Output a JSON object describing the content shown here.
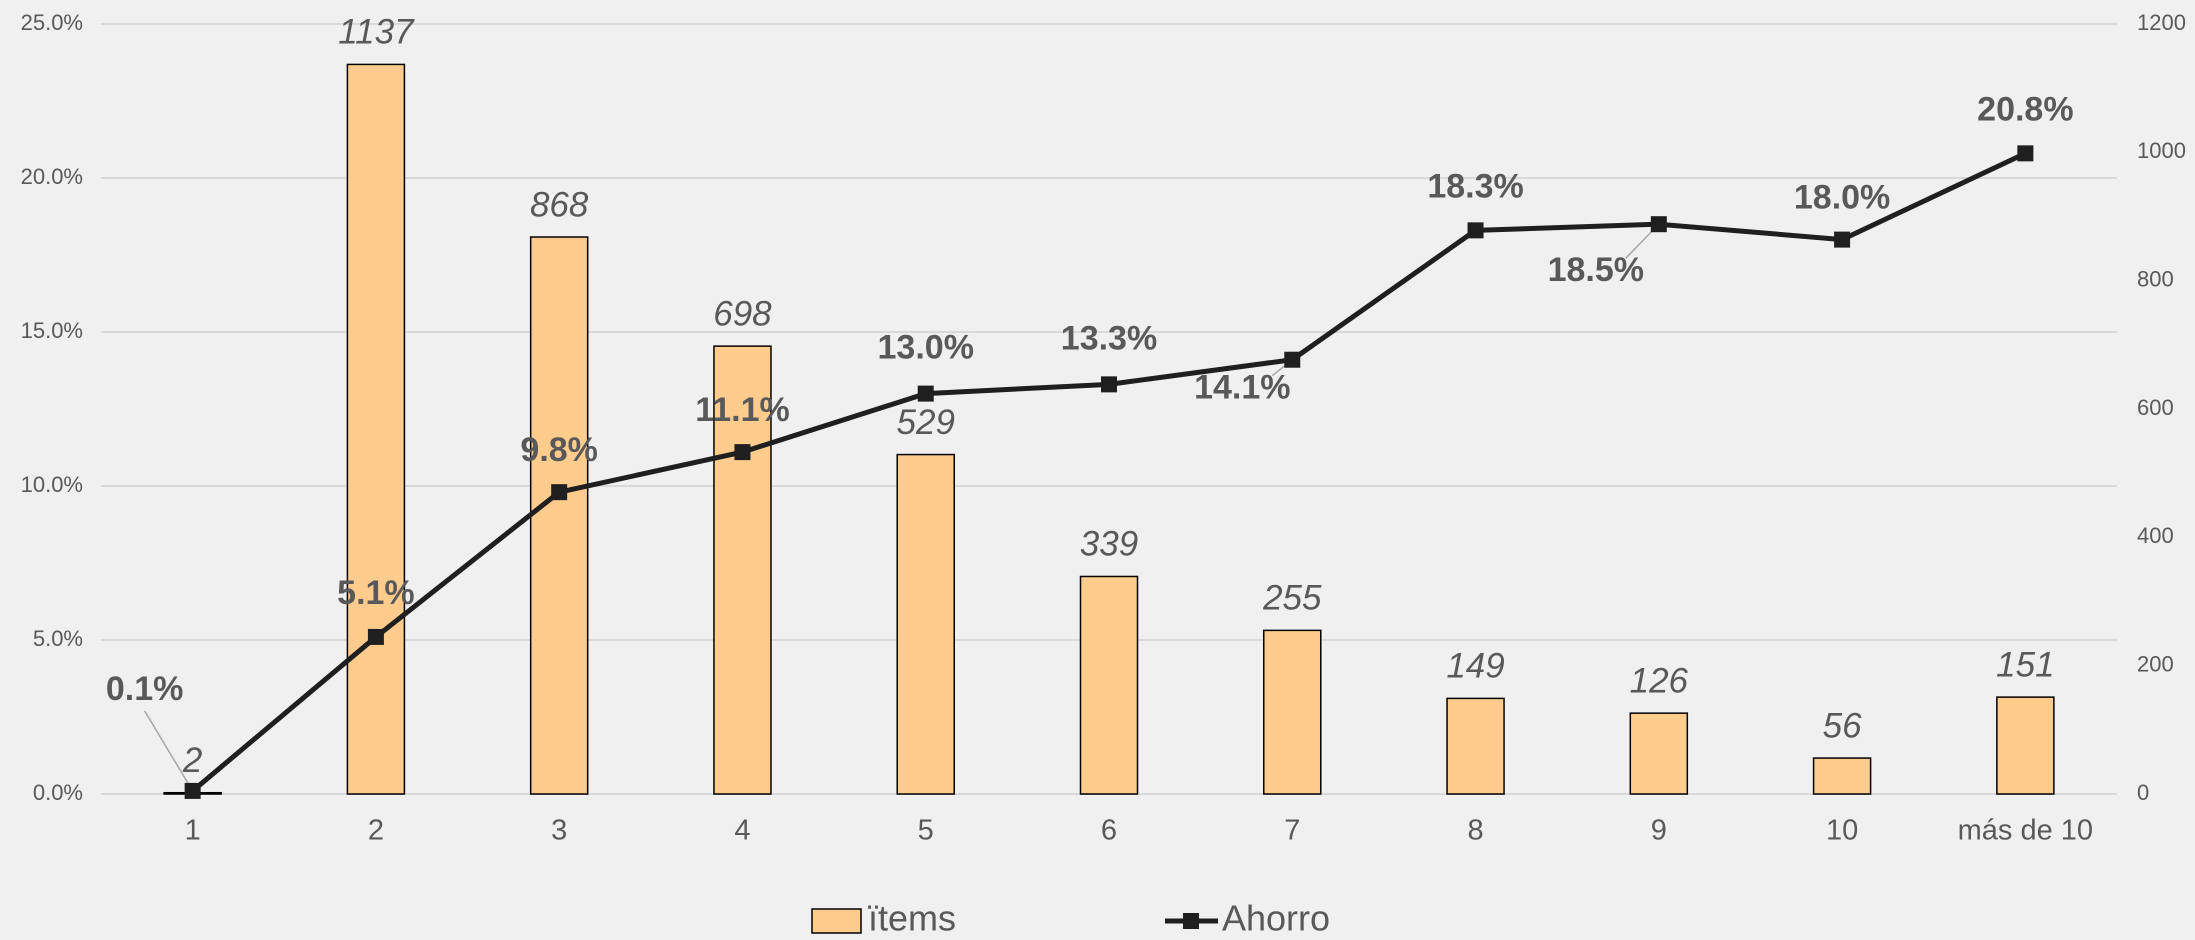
{
  "chart_data": {
    "type": "bar+line",
    "categories": [
      "1",
      "2",
      "3",
      "4",
      "5",
      "6",
      "7",
      "8",
      "9",
      "10",
      "más de 10"
    ],
    "series": [
      {
        "name": "ïtems",
        "type": "bar",
        "axis": "y2",
        "color": "#ffcc8e",
        "values": [
          2,
          1137,
          868,
          698,
          529,
          339,
          255,
          149,
          126,
          56,
          151
        ]
      },
      {
        "name": "Ahorro",
        "type": "line",
        "axis": "y",
        "color": "#1f1f1f",
        "values": [
          0.1,
          5.1,
          9.8,
          11.1,
          13.0,
          13.3,
          14.1,
          18.3,
          18.5,
          18.0,
          20.8
        ],
        "value_labels": [
          "0.1%",
          "5.1%",
          "9.8%",
          "11.1%",
          "13.0%",
          "13.3%",
          "14.1%",
          "18.3%",
          "18.5%",
          "18.0%",
          "20.8%"
        ]
      }
    ],
    "ylim": [
      0,
      25
    ],
    "yticks": [
      {
        "value": 0,
        "label": "0.0%"
      },
      {
        "value": 5,
        "label": "5.0%"
      },
      {
        "value": 10,
        "label": "10.0%"
      },
      {
        "value": 15,
        "label": "15.0%"
      },
      {
        "value": 20,
        "label": "20.0%"
      },
      {
        "value": 25,
        "label": "25.0%"
      }
    ],
    "y2lim": [
      0,
      1200
    ],
    "y2ticks": [
      0,
      200,
      400,
      600,
      800,
      1000,
      1200
    ],
    "grid": true,
    "legend": "bottom"
  }
}
